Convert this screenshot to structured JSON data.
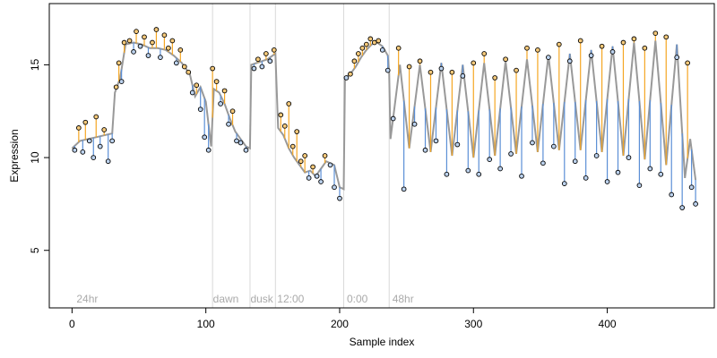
{
  "chart_data": {
    "type": "scatter",
    "title": "",
    "xlabel": "Sample index",
    "ylabel": "Expression",
    "xlim": [
      -17,
      480
    ],
    "ylim": [
      1.9,
      18.3
    ],
    "xticks": [
      "0",
      "100",
      "200",
      "300",
      "400"
    ],
    "yticks": [
      "5",
      "10",
      "15"
    ],
    "grid": false,
    "legend": "none",
    "colors": {
      "fit_line": "#999999",
      "residual_above": "#f5a623",
      "residual_below": "#5b8fd6",
      "point_above_fill": "#f5c97a",
      "point_below_fill": "#bcd2ee",
      "point_stroke": "#000000",
      "separator": "#d8d8d8",
      "annotation_text": "#aaaaaa"
    },
    "annotations": [
      {
        "text": "24hr",
        "x": 2
      },
      {
        "text": "dawn",
        "x": 104
      },
      {
        "text": "dusk",
        "x": 132
      },
      {
        "text": "12:00",
        "x": 152
      },
      {
        "text": "0:00",
        "x": 204
      },
      {
        "text": "48hr",
        "x": 238
      }
    ],
    "separators": [
      105,
      133,
      152,
      203,
      237
    ],
    "series": [
      {
        "name": "fit",
        "x": [
          0,
          6,
          12,
          18,
          24,
          30,
          32,
          36,
          40,
          46,
          52,
          58,
          64,
          70,
          76,
          82,
          88,
          92,
          96,
          100,
          104,
          106,
          110,
          114,
          118,
          122,
          126,
          130,
          133,
          134,
          138,
          142,
          146,
          150,
          152,
          154,
          158,
          162,
          166,
          170,
          174,
          178,
          182,
          186,
          190,
          196,
          200,
          203,
          204,
          208,
          212,
          216,
          220,
          224,
          228,
          232,
          236,
          237,
          238,
          245,
          252,
          260,
          268,
          276,
          284,
          292,
          300,
          308,
          316,
          324,
          332,
          340,
          348,
          356,
          364,
          372,
          380,
          388,
          396,
          404,
          412,
          420,
          428,
          436,
          444,
          452,
          458,
          462,
          466
        ],
        "y": [
          10.5,
          10.9,
          11.0,
          11.1,
          11.2,
          11.3,
          13.5,
          14.3,
          16.1,
          16.2,
          16.1,
          15.9,
          15.9,
          15.8,
          15.5,
          15.1,
          14.5,
          13.3,
          13.8,
          13.0,
          10.6,
          13.7,
          13.5,
          12.9,
          12.1,
          11.4,
          11.0,
          10.6,
          10.5,
          15.0,
          15.1,
          15.2,
          15.3,
          15.5,
          15.6,
          11.6,
          11.2,
          10.5,
          10.0,
          9.6,
          9.2,
          9.3,
          9.0,
          9.4,
          9.8,
          9.6,
          8.4,
          8.3,
          14.3,
          14.5,
          14.9,
          15.4,
          15.8,
          16.1,
          16.2,
          16.0,
          15.5,
          14.6,
          11.0,
          15.0,
          10.5,
          15.0,
          10.3,
          15.1,
          10.1,
          15.0,
          10.0,
          15.1,
          10.1,
          15.2,
          10.2,
          15.3,
          10.3,
          15.5,
          10.4,
          15.6,
          10.4,
          15.8,
          10.3,
          16.0,
          10.1,
          16.2,
          9.9,
          16.3,
          9.6,
          16.1,
          8.9,
          11.0,
          8.8
        ]
      },
      {
        "name": "observations",
        "x": [
          2,
          5,
          8,
          10,
          13,
          16,
          18,
          21,
          24,
          27,
          30,
          33,
          35,
          37,
          39,
          43,
          46,
          48,
          51,
          54,
          57,
          60,
          63,
          66,
          69,
          72,
          75,
          78,
          81,
          84,
          87,
          90,
          93,
          96,
          99,
          102,
          105,
          108,
          111,
          114,
          117,
          120,
          123,
          126,
          130,
          136,
          139,
          142,
          145,
          148,
          151,
          156,
          159,
          162,
          165,
          168,
          171,
          174,
          177,
          180,
          183,
          186,
          189,
          193,
          196,
          200,
          205,
          208,
          211,
          214,
          217,
          220,
          223,
          226,
          229,
          232,
          236,
          240,
          244,
          248,
          252,
          256,
          260,
          264,
          268,
          272,
          276,
          280,
          284,
          288,
          292,
          296,
          300,
          304,
          308,
          312,
          316,
          320,
          324,
          328,
          332,
          336,
          340,
          344,
          348,
          352,
          356,
          360,
          364,
          368,
          372,
          376,
          380,
          384,
          388,
          392,
          396,
          400,
          404,
          408,
          412,
          416,
          420,
          424,
          428,
          432,
          436,
          440,
          444,
          448,
          452,
          456,
          460,
          463,
          466
        ],
        "y": [
          10.4,
          11.6,
          10.3,
          11.9,
          10.9,
          10.0,
          12.2,
          10.6,
          11.5,
          9.8,
          10.9,
          13.8,
          15.1,
          14.1,
          16.2,
          16.3,
          15.7,
          16.8,
          16.0,
          16.5,
          15.5,
          16.2,
          16.9,
          15.4,
          16.6,
          15.9,
          16.3,
          15.1,
          15.8,
          14.9,
          14.6,
          13.5,
          13.9,
          12.6,
          11.1,
          10.4,
          14.8,
          14.1,
          12.9,
          13.6,
          11.8,
          12.5,
          10.9,
          10.8,
          10.4,
          14.8,
          15.3,
          14.9,
          15.6,
          15.2,
          15.8,
          12.3,
          11.7,
          12.9,
          10.6,
          11.4,
          9.8,
          10.1,
          8.9,
          9.5,
          9.0,
          8.7,
          10.1,
          9.6,
          8.4,
          7.8,
          14.3,
          14.5,
          15.2,
          15.6,
          15.9,
          16.1,
          16.4,
          16.2,
          16.3,
          15.8,
          14.7,
          12.1,
          15.9,
          8.3,
          14.9,
          11.8,
          15.2,
          10.4,
          14.6,
          10.9,
          14.8,
          9.1,
          14.6,
          10.7,
          14.4,
          9.3,
          15.1,
          9.1,
          15.6,
          9.9,
          14.3,
          9.4,
          15.3,
          10.2,
          14.7,
          9.0,
          15.9,
          10.8,
          15.8,
          9.7,
          15.4,
          10.6,
          16.1,
          8.6,
          15.2,
          9.8,
          16.3,
          8.9,
          15.5,
          10.1,
          16.0,
          8.7,
          15.7,
          9.2,
          16.2,
          10.0,
          16.4,
          8.5,
          15.9,
          9.4,
          16.7,
          9.1,
          16.5,
          8.0,
          15.4,
          7.3,
          15.1,
          8.4,
          7.5
        ]
      }
    ]
  }
}
